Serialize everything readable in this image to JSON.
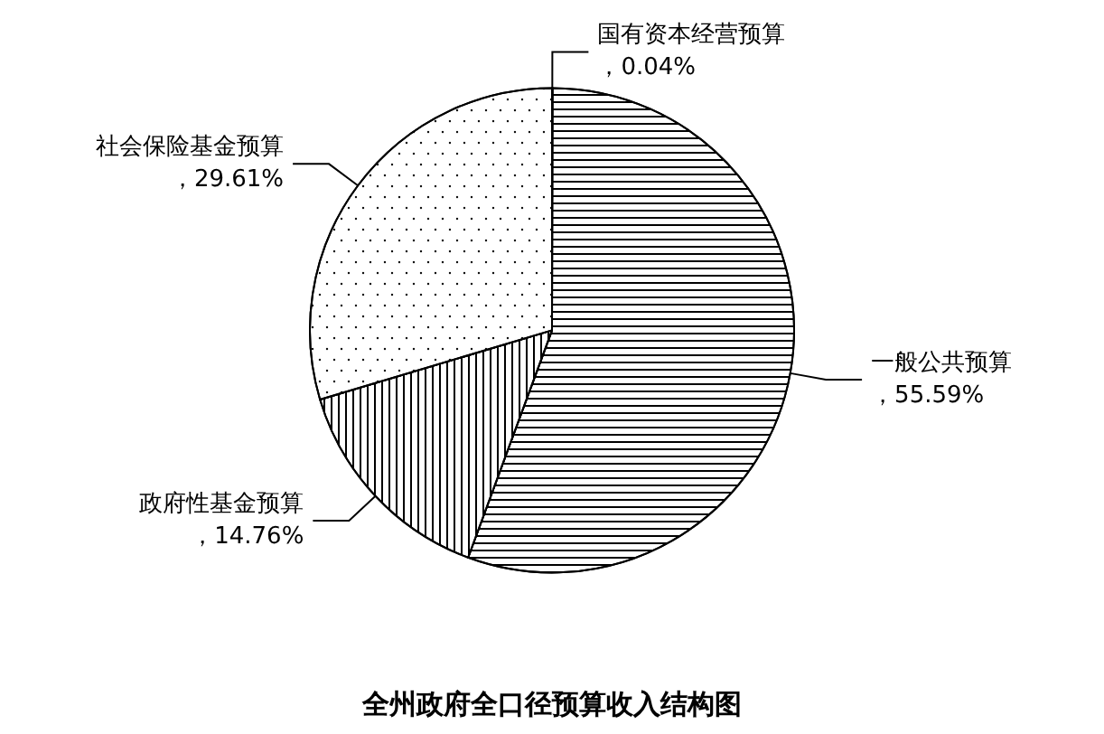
{
  "chart_data": {
    "type": "pie",
    "title": "全州政府全口径预算收入结构图",
    "categories": [
      "国有资本经营预算",
      "一般公共预算",
      "政府性基金预算",
      "社会保险基金预算"
    ],
    "values": [
      0.04,
      55.59,
      14.76,
      29.61
    ],
    "colors": [
      "#ffffff",
      "#ffffff",
      "#ffffff",
      "#ffffff"
    ],
    "value_labels": [
      "，0.04%",
      "，55.59%",
      "，14.76%",
      "，29.61%"
    ],
    "legend": false
  }
}
